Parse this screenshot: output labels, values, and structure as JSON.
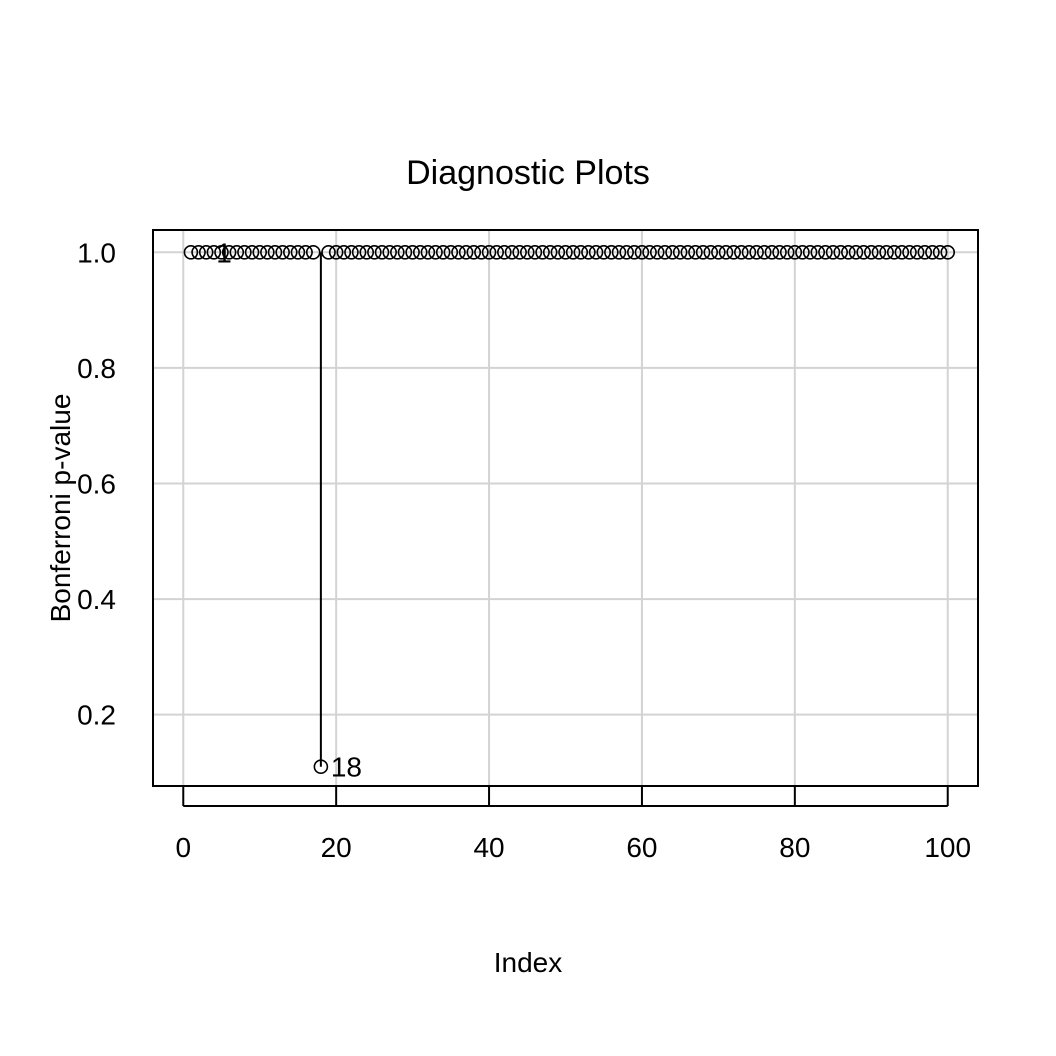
{
  "chart_data": {
    "type": "scatter",
    "title": "Diagnostic Plots",
    "xlabel": "Index",
    "ylabel": "Bonferroni p-value",
    "xlim": [
      -3.96,
      103.96
    ],
    "ylim": [
      0.0766,
      1.0386
    ],
    "x_ticks": [
      0,
      20,
      40,
      60,
      80,
      100
    ],
    "x_tick_labels": [
      "0",
      "20",
      "40",
      "60",
      "80",
      "100"
    ],
    "y_ticks": [
      0.2,
      0.4,
      0.6,
      0.8,
      1.0
    ],
    "y_tick_labels": [
      "0.2",
      "0.4",
      "0.6",
      "0.8",
      "1.0"
    ],
    "grid": true,
    "series": [
      {
        "x": [
          1,
          2,
          3,
          4,
          5,
          6,
          7,
          8,
          9,
          10,
          11,
          12,
          13,
          14,
          15,
          16,
          17,
          18,
          19,
          20,
          21,
          22,
          23,
          24,
          25,
          26,
          27,
          28,
          29,
          30,
          31,
          32,
          33,
          34,
          35,
          36,
          37,
          38,
          39,
          40,
          41,
          42,
          43,
          44,
          45,
          46,
          47,
          48,
          49,
          50,
          51,
          52,
          53,
          54,
          55,
          56,
          57,
          58,
          59,
          60,
          61,
          62,
          63,
          64,
          65,
          66,
          67,
          68,
          69,
          70,
          71,
          72,
          73,
          74,
          75,
          76,
          77,
          78,
          79,
          80,
          81,
          82,
          83,
          84,
          85,
          86,
          87,
          88,
          89,
          90,
          91,
          92,
          93,
          94,
          95,
          96,
          97,
          98,
          99,
          100
        ],
        "y": [
          1,
          1,
          1,
          1,
          1,
          1,
          1,
          1,
          1,
          1,
          1,
          1,
          1,
          1,
          1,
          1,
          1,
          0.11,
          1,
          1,
          1,
          1,
          1,
          1,
          1,
          1,
          1,
          1,
          1,
          1,
          1,
          1,
          1,
          1,
          1,
          1,
          1,
          1,
          1,
          1,
          1,
          1,
          1,
          1,
          1,
          1,
          1,
          1,
          1,
          1,
          1,
          1,
          1,
          1,
          1,
          1,
          1,
          1,
          1,
          1,
          1,
          1,
          1,
          1,
          1,
          1,
          1,
          1,
          1,
          1,
          1,
          1,
          1,
          1,
          1,
          1,
          1,
          1,
          1,
          1,
          1,
          1,
          1,
          1,
          1,
          1,
          1,
          1,
          1,
          1,
          1,
          1,
          1,
          1,
          1,
          1,
          1,
          1,
          1,
          1
        ]
      }
    ],
    "annotations": [
      {
        "text": "1",
        "x": 3,
        "y": 1.0
      },
      {
        "text": "18",
        "x": 18,
        "y": 0.11
      }
    ]
  }
}
